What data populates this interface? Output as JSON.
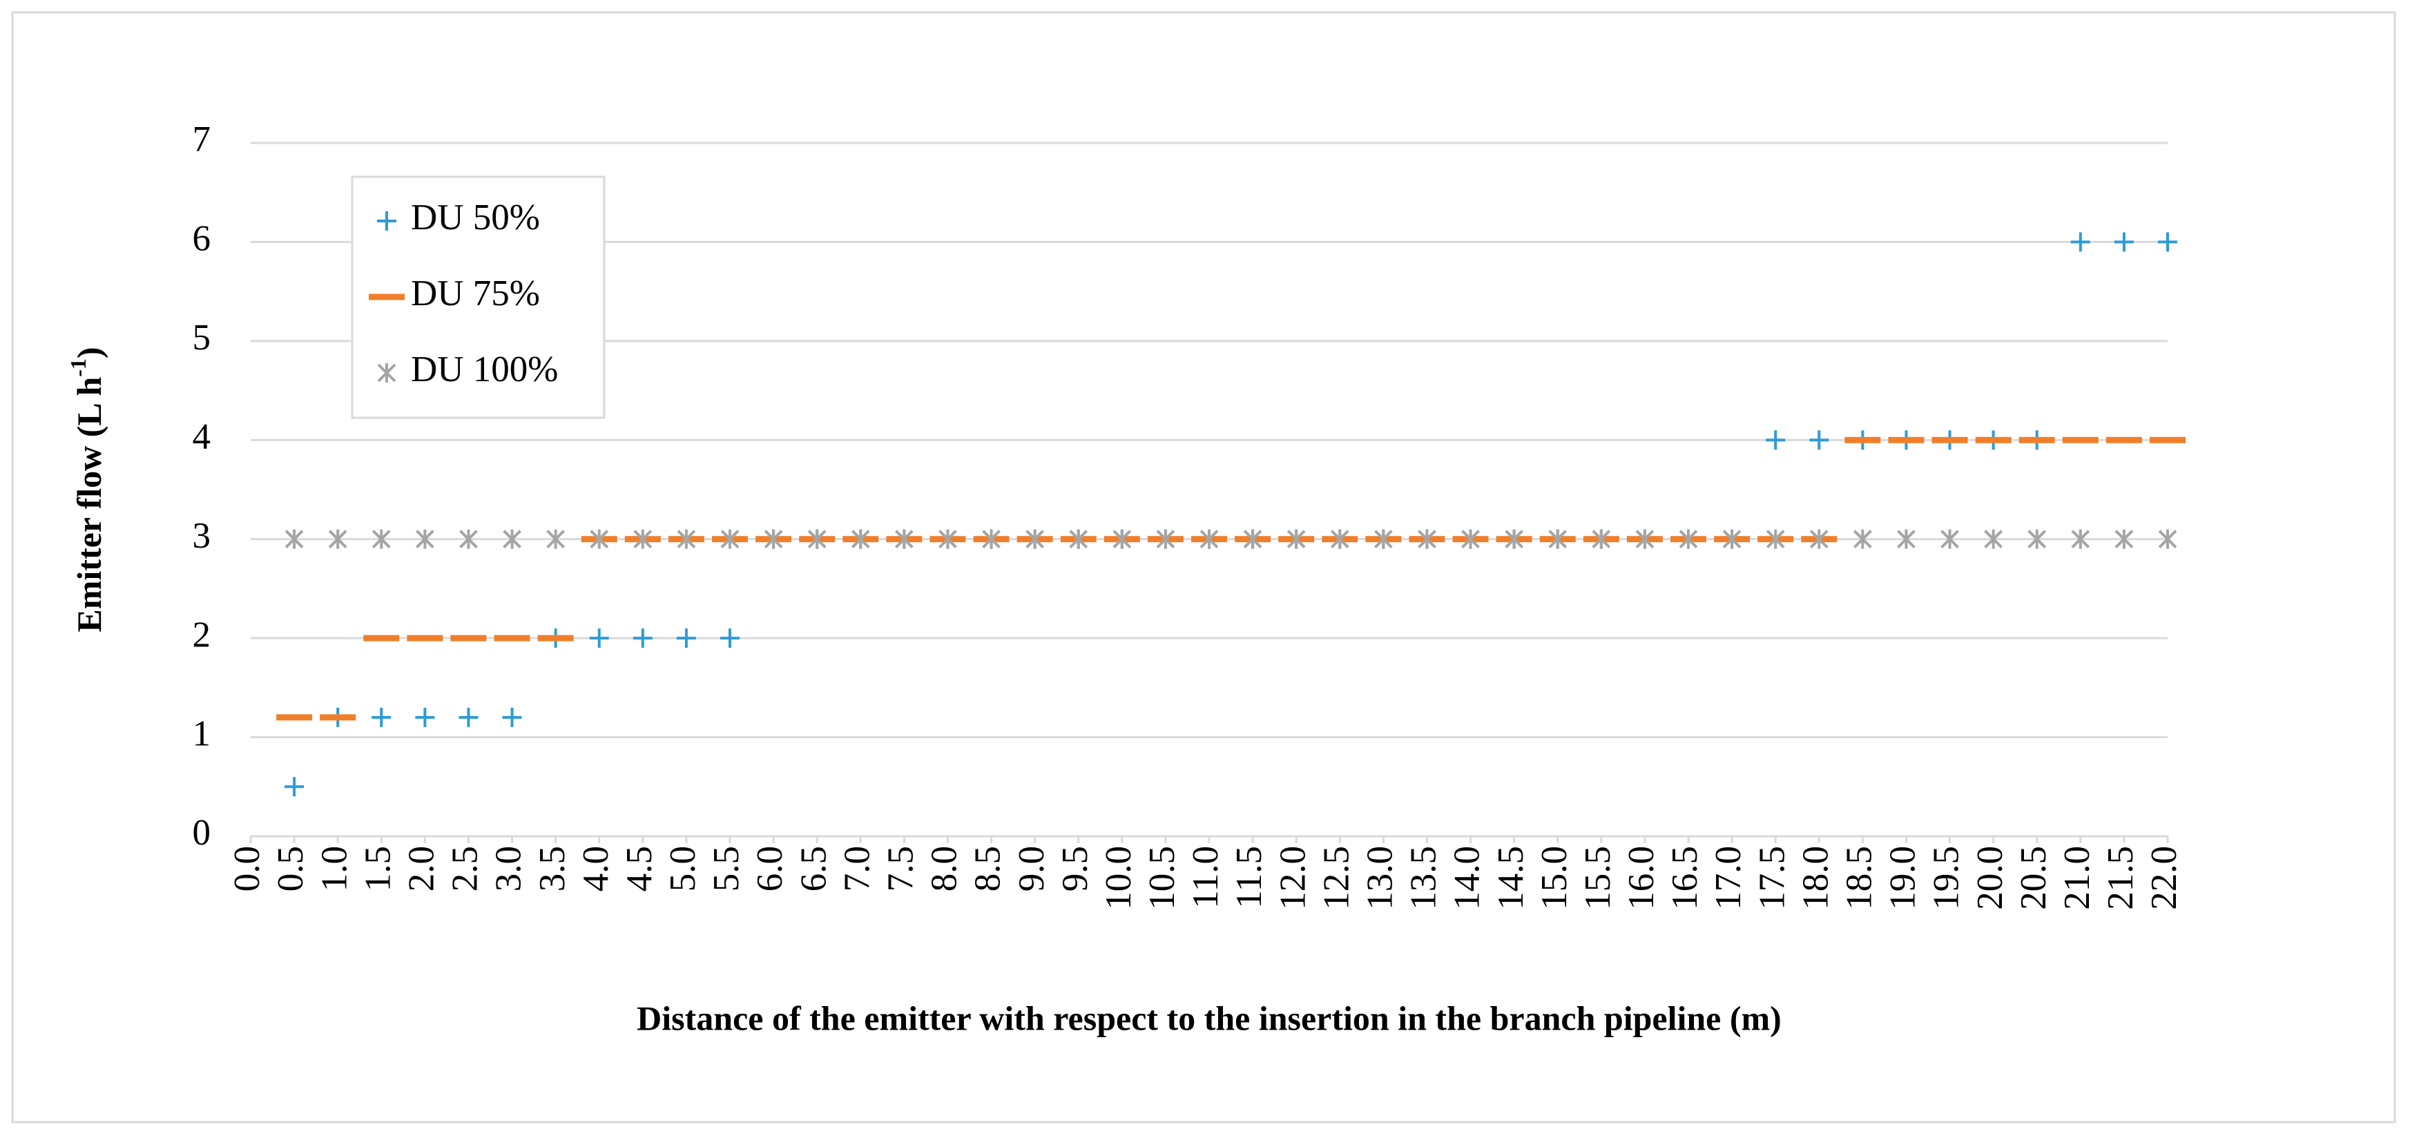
{
  "chart_data": {
    "type": "scatter",
    "x_label": "Distance of the emitter with respect to the insertion in the branch pipeline  (m)",
    "y_label": "Emitter flow (L h",
    "y_label_sup": "-1",
    "y_label_end": ")",
    "x": [
      0.5,
      1.0,
      1.5,
      2.0,
      2.5,
      3.0,
      3.5,
      4.0,
      4.5,
      5.0,
      5.5,
      6.0,
      6.5,
      7.0,
      7.5,
      8.0,
      8.5,
      9.0,
      9.5,
      10.0,
      10.5,
      11.0,
      11.5,
      12.0,
      12.5,
      13.0,
      13.5,
      14.0,
      14.5,
      15.0,
      15.5,
      16.0,
      16.5,
      17.0,
      17.5,
      18.0,
      18.5,
      19.0,
      19.5,
      20.0,
      20.5,
      21.0,
      21.5,
      22.0
    ],
    "series": [
      {
        "name": "DU 50%",
        "color": "#2e9bd6",
        "marker": "plus",
        "values": [
          0.5,
          1.2,
          1.2,
          1.2,
          1.2,
          1.2,
          2,
          2,
          2,
          2,
          2,
          3,
          3,
          3,
          3,
          3,
          3,
          3,
          3,
          3,
          3,
          3,
          3,
          3,
          3,
          3,
          3,
          3,
          3,
          3,
          3,
          3,
          3,
          3,
          4,
          4,
          4,
          4,
          4,
          4,
          4,
          6,
          6,
          6
        ]
      },
      {
        "name": "DU 75%",
        "color": "#f07f2b",
        "marker": "dash",
        "values": [
          1.2,
          1.2,
          2,
          2,
          2,
          2,
          2,
          3,
          3,
          3,
          3,
          3,
          3,
          3,
          3,
          3,
          3,
          3,
          3,
          3,
          3,
          3,
          3,
          3,
          3,
          3,
          3,
          3,
          3,
          3,
          3,
          3,
          3,
          3,
          3,
          3,
          4,
          4,
          4,
          4,
          4,
          4,
          4,
          4
        ]
      },
      {
        "name": "DU 100%",
        "color": "#a5a5a5",
        "marker": "star",
        "values": [
          3,
          3,
          3,
          3,
          3,
          3,
          3,
          3,
          3,
          3,
          3,
          3,
          3,
          3,
          3,
          3,
          3,
          3,
          3,
          3,
          3,
          3,
          3,
          3,
          3,
          3,
          3,
          3,
          3,
          3,
          3,
          3,
          3,
          3,
          3,
          3,
          3,
          3,
          3,
          3,
          3,
          3,
          3,
          3
        ]
      }
    ],
    "xlim": [
      0,
      22
    ],
    "xticks": [
      {
        "value": 0,
        "label": "0.0"
      },
      0.5,
      {
        "value": 1,
        "label": "1.0"
      },
      1.5,
      {
        "value": 2,
        "label": "2.0"
      },
      2.5,
      {
        "value": 3,
        "label": "3.0"
      },
      3.5,
      {
        "value": 4,
        "label": "4.0"
      },
      4.5,
      {
        "value": 5,
        "label": "5.0"
      },
      5.5,
      {
        "value": 6,
        "label": "6.0"
      },
      6.5,
      {
        "value": 7,
        "label": "7.0"
      },
      7.5,
      {
        "value": 8,
        "label": "8.0"
      },
      8.5,
      {
        "value": 9,
        "label": "9.0"
      },
      9.5,
      {
        "value": 10,
        "label": "10.0"
      },
      10.5,
      {
        "value": 11,
        "label": "11.0"
      },
      11.5,
      {
        "value": 12,
        "label": "12.0"
      },
      12.5,
      {
        "value": 13,
        "label": "13.0"
      },
      13.5,
      {
        "value": 14,
        "label": "14.0"
      },
      14.5,
      {
        "value": 15,
        "label": "15.0"
      },
      15.5,
      {
        "value": 16,
        "label": "16.0"
      },
      16.5,
      {
        "value": 17,
        "label": "17.0"
      },
      17.5,
      {
        "value": 18,
        "label": "18.0"
      },
      18.5,
      {
        "value": 19,
        "label": "19.0"
      },
      19.5,
      {
        "value": 20,
        "label": "20.0"
      },
      20.5,
      {
        "value": 21,
        "label": "21.0"
      },
      21.5,
      {
        "value": 22,
        "label": "22.0"
      }
    ],
    "ylim": [
      0,
      7
    ],
    "yticks": [
      0,
      1,
      2,
      3,
      4,
      5,
      6,
      7
    ],
    "grid": true,
    "legend": "upper-left"
  }
}
